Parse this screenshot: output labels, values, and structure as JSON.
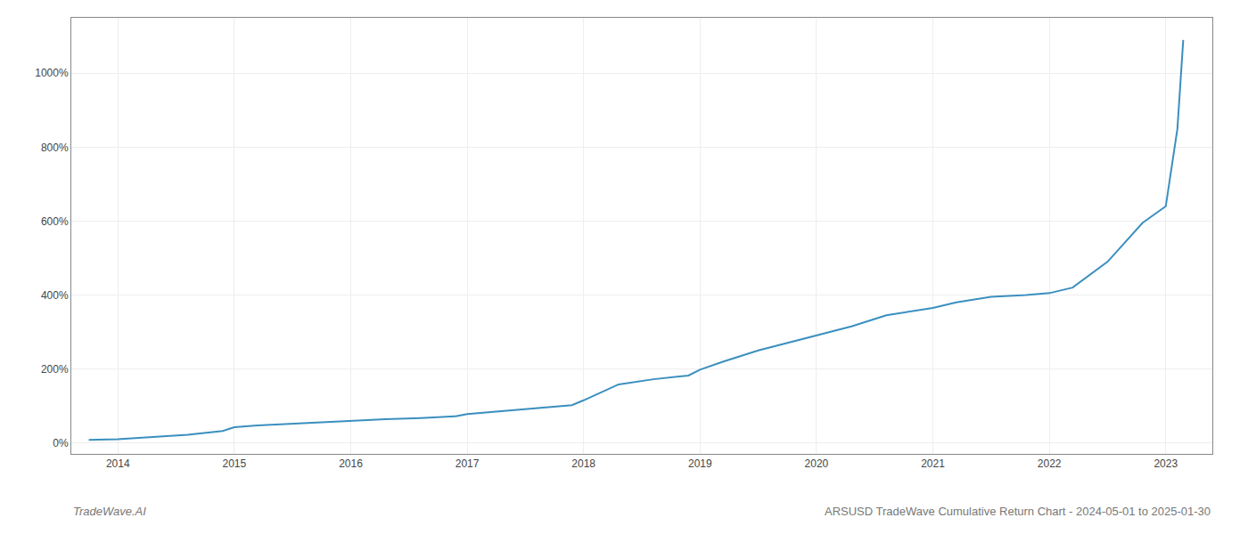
{
  "chart_data": {
    "type": "line",
    "x": [
      2013.75,
      2014.0,
      2014.3,
      2014.6,
      2014.9,
      2015.0,
      2015.2,
      2015.5,
      2015.8,
      2016.0,
      2016.3,
      2016.6,
      2016.9,
      2017.0,
      2017.3,
      2017.6,
      2017.9,
      2018.0,
      2018.1,
      2018.3,
      2018.6,
      2018.9,
      2019.0,
      2019.2,
      2019.5,
      2019.8,
      2020.0,
      2020.3,
      2020.6,
      2020.9,
      2021.0,
      2021.2,
      2021.5,
      2021.8,
      2022.0,
      2022.2,
      2022.5,
      2022.8,
      2023.0,
      2023.1,
      2023.15
    ],
    "values": [
      8,
      10,
      16,
      22,
      32,
      42,
      47,
      52,
      57,
      60,
      64,
      67,
      72,
      78,
      86,
      95,
      102,
      115,
      130,
      158,
      172,
      182,
      198,
      220,
      250,
      275,
      290,
      315,
      345,
      360,
      365,
      380,
      395,
      400,
      405,
      420,
      490,
      595,
      640,
      850,
      1090
    ],
    "color": "#3a8fbf",
    "xlim": [
      2013.6,
      2023.4
    ],
    "xticks": [
      2014,
      2015,
      2016,
      2017,
      2018,
      2019,
      2020,
      2021,
      2022,
      2023
    ],
    "ylim": [
      -30,
      1150
    ],
    "yticks": [
      {
        "value": 0,
        "label": "0%"
      },
      {
        "value": 200,
        "label": "200%"
      },
      {
        "value": 400,
        "label": "400%"
      },
      {
        "value": 600,
        "label": "600%"
      },
      {
        "value": 800,
        "label": "800%"
      },
      {
        "value": 1000,
        "label": "1000%"
      }
    ],
    "grid": true,
    "annotations": [
      "TradeWave.AI",
      "ARSUSD TradeWave Cumulative Return Chart - 2024-05-01 to 2025-01-30"
    ]
  }
}
